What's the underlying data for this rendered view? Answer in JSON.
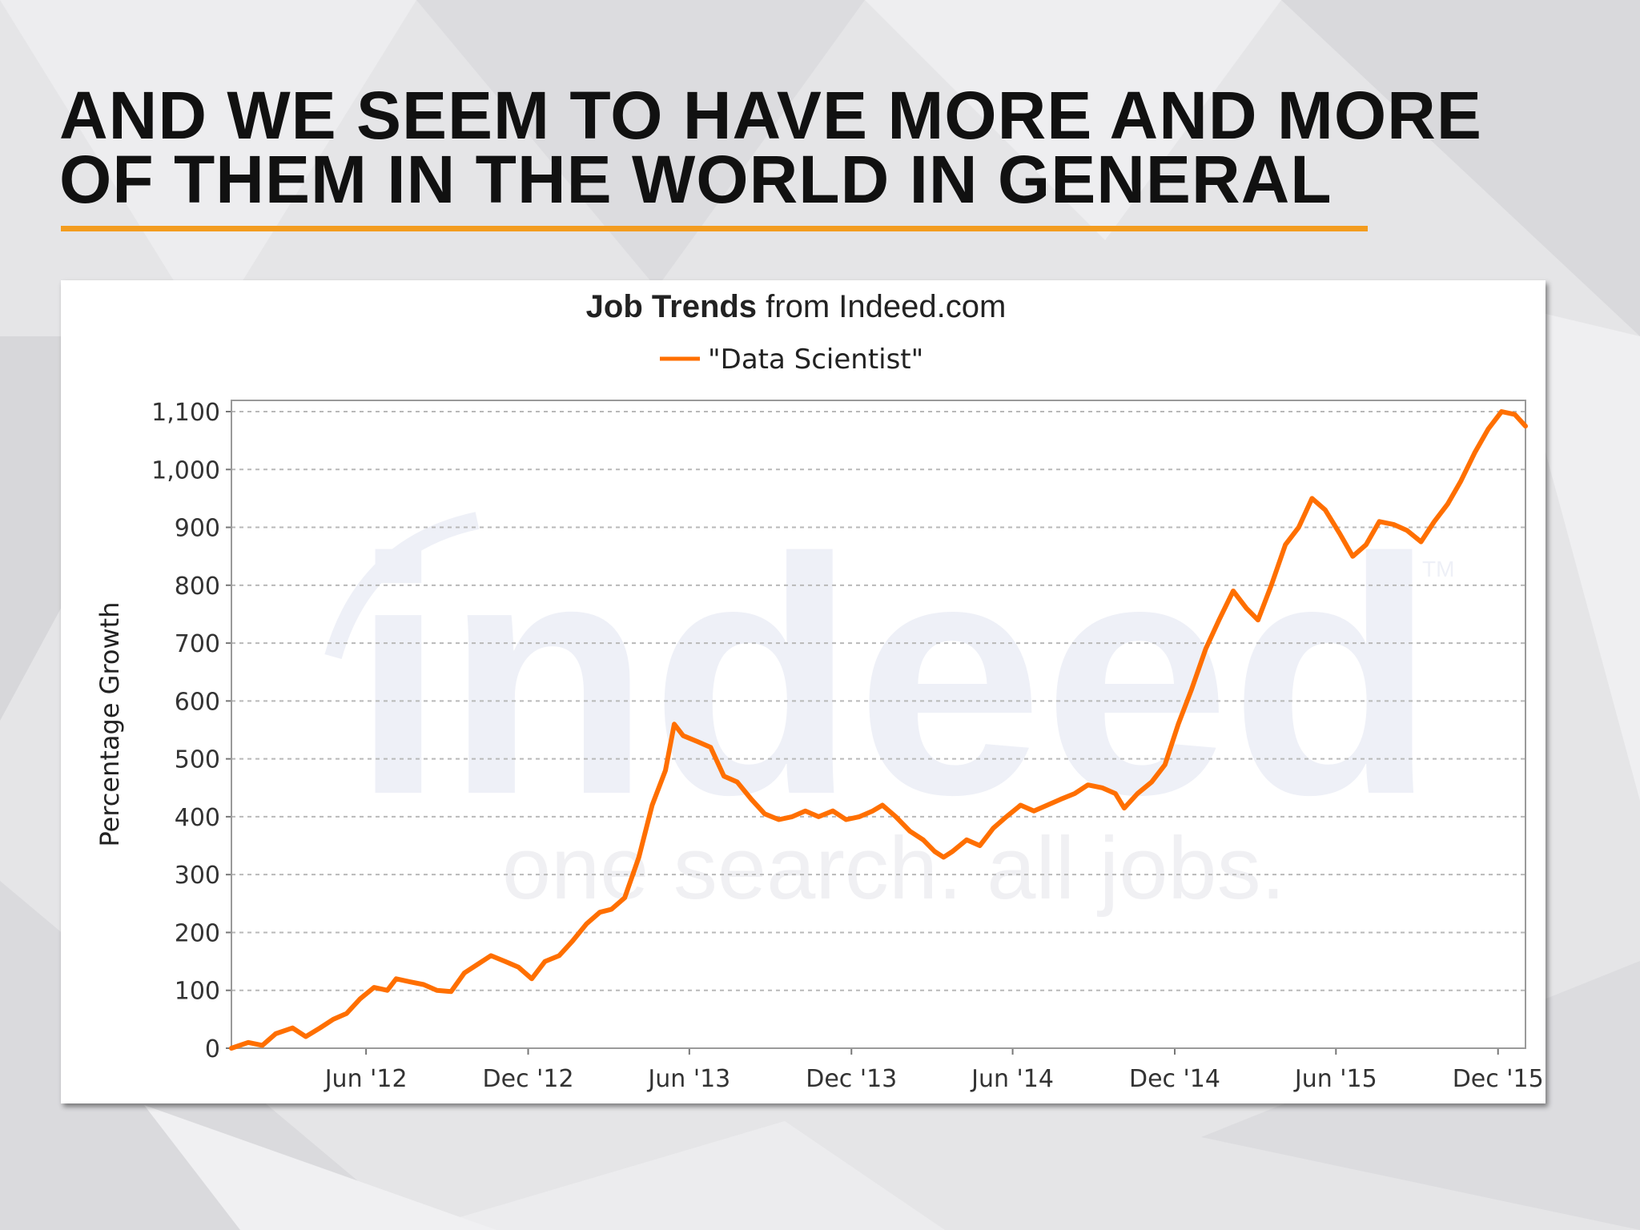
{
  "slide": {
    "title_line1": "AND WE SEEM TO HAVE MORE AND MORE",
    "title_line2": "OF THEM IN THE WORLD IN GENERAL",
    "accent_color": "#f39c1f"
  },
  "watermark": {
    "logo_text": "indeed",
    "tagline": "one search. all jobs.",
    "tm": "TM"
  },
  "chart_data": {
    "type": "line",
    "title_bold": "Job Trends",
    "title_rest": " from Indeed.com",
    "legend_position": "top-center",
    "ylabel": "Percentage Growth",
    "xlabel": "",
    "ylim": [
      0,
      1100
    ],
    "yticks": [
      0,
      100,
      200,
      300,
      400,
      500,
      600,
      700,
      800,
      900,
      1000,
      1100
    ],
    "ytick_labels": [
      "0",
      "100",
      "200",
      "300",
      "400",
      "500",
      "600",
      "700",
      "800",
      "900",
      "1,000",
      "1,100"
    ],
    "xlim": [
      "2012-01-01",
      "2016-01-01"
    ],
    "xticks": [
      {
        "label": "Jun '12",
        "date": "2012-06-01"
      },
      {
        "label": "Dec '12",
        "date": "2012-12-01"
      },
      {
        "label": "Jun '13",
        "date": "2013-06-01"
      },
      {
        "label": "Dec '13",
        "date": "2013-12-01"
      },
      {
        "label": "Jun '14",
        "date": "2014-06-01"
      },
      {
        "label": "Dec '14",
        "date": "2014-12-01"
      },
      {
        "label": "Jun '15",
        "date": "2015-06-01"
      },
      {
        "label": "Dec '15",
        "date": "2015-12-01"
      }
    ],
    "grid": true,
    "series": [
      {
        "name": "\"Data Scientist\"",
        "color": "#ff6f00",
        "points": [
          [
            "2012-01-01",
            0
          ],
          [
            "2012-01-20",
            10
          ],
          [
            "2012-02-05",
            5
          ],
          [
            "2012-02-20",
            25
          ],
          [
            "2012-03-10",
            35
          ],
          [
            "2012-03-25",
            20
          ],
          [
            "2012-04-10",
            35
          ],
          [
            "2012-04-25",
            50
          ],
          [
            "2012-05-10",
            60
          ],
          [
            "2012-05-25",
            85
          ],
          [
            "2012-06-10",
            105
          ],
          [
            "2012-06-25",
            100
          ],
          [
            "2012-07-05",
            120
          ],
          [
            "2012-07-20",
            115
          ],
          [
            "2012-08-05",
            110
          ],
          [
            "2012-08-20",
            100
          ],
          [
            "2012-09-05",
            98
          ],
          [
            "2012-09-20",
            130
          ],
          [
            "2012-10-05",
            145
          ],
          [
            "2012-10-20",
            160
          ],
          [
            "2012-11-05",
            150
          ],
          [
            "2012-11-20",
            140
          ],
          [
            "2012-12-05",
            120
          ],
          [
            "2012-12-20",
            150
          ],
          [
            "2013-01-05",
            160
          ],
          [
            "2013-01-20",
            185
          ],
          [
            "2013-02-05",
            215
          ],
          [
            "2013-02-20",
            235
          ],
          [
            "2013-03-05",
            240
          ],
          [
            "2013-03-20",
            260
          ],
          [
            "2013-04-05",
            330
          ],
          [
            "2013-04-20",
            420
          ],
          [
            "2013-05-05",
            480
          ],
          [
            "2013-05-15",
            560
          ],
          [
            "2013-05-25",
            540
          ],
          [
            "2013-06-10",
            530
          ],
          [
            "2013-06-25",
            520
          ],
          [
            "2013-07-10",
            470
          ],
          [
            "2013-07-25",
            460
          ],
          [
            "2013-08-10",
            430
          ],
          [
            "2013-08-25",
            405
          ],
          [
            "2013-09-10",
            395
          ],
          [
            "2013-09-25",
            400
          ],
          [
            "2013-10-10",
            410
          ],
          [
            "2013-10-25",
            400
          ],
          [
            "2013-11-10",
            410
          ],
          [
            "2013-11-25",
            395
          ],
          [
            "2013-12-10",
            400
          ],
          [
            "2013-12-25",
            410
          ],
          [
            "2014-01-05",
            420
          ],
          [
            "2014-01-20",
            400
          ],
          [
            "2014-02-05",
            375
          ],
          [
            "2014-02-20",
            360
          ],
          [
            "2014-03-05",
            340
          ],
          [
            "2014-03-15",
            330
          ],
          [
            "2014-03-25",
            340
          ],
          [
            "2014-04-10",
            360
          ],
          [
            "2014-04-25",
            350
          ],
          [
            "2014-05-10",
            380
          ],
          [
            "2014-05-25",
            400
          ],
          [
            "2014-06-10",
            420
          ],
          [
            "2014-06-25",
            410
          ],
          [
            "2014-07-10",
            420
          ],
          [
            "2014-07-25",
            430
          ],
          [
            "2014-08-10",
            440
          ],
          [
            "2014-08-25",
            455
          ],
          [
            "2014-09-10",
            450
          ],
          [
            "2014-09-25",
            440
          ],
          [
            "2014-10-05",
            415
          ],
          [
            "2014-10-20",
            440
          ],
          [
            "2014-11-05",
            460
          ],
          [
            "2014-11-20",
            490
          ],
          [
            "2014-12-05",
            560
          ],
          [
            "2014-12-20",
            620
          ],
          [
            "2015-01-05",
            690
          ],
          [
            "2015-01-20",
            740
          ],
          [
            "2015-02-05",
            790
          ],
          [
            "2015-02-20",
            760
          ],
          [
            "2015-03-05",
            740
          ],
          [
            "2015-03-20",
            800
          ],
          [
            "2015-04-05",
            870
          ],
          [
            "2015-04-20",
            900
          ],
          [
            "2015-05-05",
            950
          ],
          [
            "2015-05-20",
            930
          ],
          [
            "2015-06-05",
            890
          ],
          [
            "2015-06-20",
            850
          ],
          [
            "2015-07-05",
            870
          ],
          [
            "2015-07-20",
            910
          ],
          [
            "2015-08-05",
            905
          ],
          [
            "2015-08-20",
            895
          ],
          [
            "2015-09-05",
            875
          ],
          [
            "2015-09-20",
            910
          ],
          [
            "2015-10-05",
            940
          ],
          [
            "2015-10-20",
            980
          ],
          [
            "2015-11-05",
            1030
          ],
          [
            "2015-11-20",
            1070
          ],
          [
            "2015-12-05",
            1100
          ],
          [
            "2015-12-20",
            1095
          ],
          [
            "2016-01-01",
            1075
          ]
        ]
      }
    ]
  }
}
